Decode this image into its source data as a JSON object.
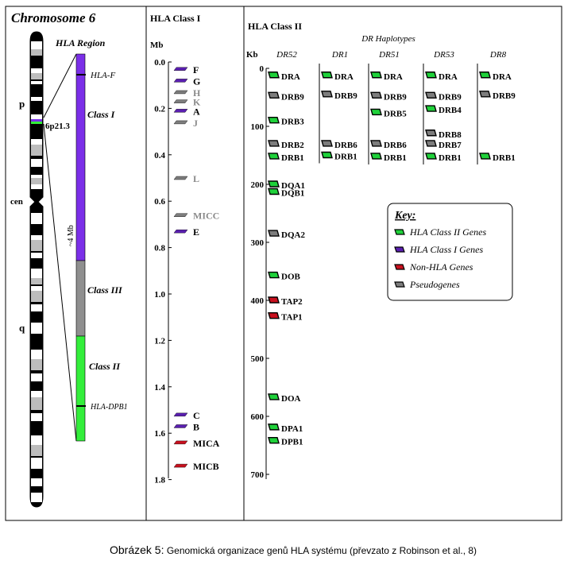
{
  "colors": {
    "class1": "#5a1fb0",
    "class2": "#1fd13a",
    "nonhla": "#c8101e",
    "pseudo": "#7d7d7d",
    "region_class1": "#7b2fe8",
    "region_class3": "#8f8f8f",
    "region_class2": "#33ee3b"
  },
  "chromosome": {
    "title": "Chromosome 6",
    "region_title": "HLA Region",
    "p_label": "p",
    "q_label": "q",
    "cen_label": "cen",
    "band_label": "6p21.3",
    "size_label": "~4 Mb",
    "class1_label": "Class I",
    "class3_label": "Class III",
    "class2_label": "Class II",
    "hlaf_label": "HLA-F",
    "dpb1_label": "HLA-DPB1"
  },
  "class1": {
    "title": "HLA Class I",
    "unit": "Mb",
    "ticks": [
      "0.0",
      "0.2",
      "0.4",
      "0.6",
      "0.8",
      "1.0",
      "1.2",
      "1.4",
      "1.6",
      "1.8"
    ],
    "genes": [
      {
        "name": "F",
        "pos": 0.03,
        "type": "class1"
      },
      {
        "name": "G",
        "pos": 0.08,
        "type": "class1"
      },
      {
        "name": "H",
        "pos": 0.13,
        "type": "pseudo"
      },
      {
        "name": "K",
        "pos": 0.17,
        "type": "pseudo"
      },
      {
        "name": "A",
        "pos": 0.21,
        "type": "class1"
      },
      {
        "name": "J",
        "pos": 0.26,
        "type": "pseudo"
      },
      {
        "name": "L",
        "pos": 0.5,
        "type": "pseudo"
      },
      {
        "name": "MICC",
        "pos": 0.66,
        "type": "pseudo"
      },
      {
        "name": "E",
        "pos": 0.73,
        "type": "class1"
      },
      {
        "name": "C",
        "pos": 1.52,
        "type": "class1"
      },
      {
        "name": "B",
        "pos": 1.57,
        "type": "class1"
      },
      {
        "name": "MICA",
        "pos": 1.64,
        "type": "nonhla"
      },
      {
        "name": "MICB",
        "pos": 1.74,
        "type": "nonhla"
      }
    ]
  },
  "class2": {
    "title": "HLA Class II",
    "unit": "Kb",
    "haplo_title": "DR Haplotypes",
    "ticks": [
      "0",
      "100",
      "200",
      "300",
      "400",
      "500",
      "600",
      "700"
    ],
    "haplotypes": [
      {
        "name": "DR52",
        "genes": [
          {
            "name": "DRA",
            "pos": 12,
            "type": "class2"
          },
          {
            "name": "DRB9",
            "pos": 47,
            "type": "pseudo"
          },
          {
            "name": "DRB3",
            "pos": 90,
            "type": "class2"
          },
          {
            "name": "DRB2",
            "pos": 130,
            "type": "pseudo"
          },
          {
            "name": "DRB1",
            "pos": 152,
            "type": "class2"
          },
          {
            "name": "DQA1",
            "pos": 200,
            "type": "class2"
          },
          {
            "name": "DQB1",
            "pos": 213,
            "type": "class2"
          },
          {
            "name": "DQA2",
            "pos": 285,
            "type": "pseudo"
          },
          {
            "name": "DOB",
            "pos": 357,
            "type": "class2"
          },
          {
            "name": "TAP2",
            "pos": 400,
            "type": "nonhla"
          },
          {
            "name": "TAP1",
            "pos": 427,
            "type": "nonhla"
          },
          {
            "name": "DOA",
            "pos": 567,
            "type": "class2"
          },
          {
            "name": "DPA1",
            "pos": 619,
            "type": "class2"
          },
          {
            "name": "DPB1",
            "pos": 642,
            "type": "class2"
          }
        ]
      },
      {
        "name": "DR1",
        "genes": [
          {
            "name": "DRA",
            "pos": 12,
            "type": "class2"
          },
          {
            "name": "DRB9",
            "pos": 45,
            "type": "pseudo"
          },
          {
            "name": "DRB6",
            "pos": 130,
            "type": "pseudo"
          },
          {
            "name": "DRB1",
            "pos": 150,
            "type": "class2"
          }
        ]
      },
      {
        "name": "DR51",
        "genes": [
          {
            "name": "DRA",
            "pos": 12,
            "type": "class2"
          },
          {
            "name": "DRB9",
            "pos": 47,
            "type": "pseudo"
          },
          {
            "name": "DRB5",
            "pos": 76,
            "type": "class2"
          },
          {
            "name": "DRB6",
            "pos": 130,
            "type": "pseudo"
          },
          {
            "name": "DRB1",
            "pos": 152,
            "type": "class2"
          }
        ]
      },
      {
        "name": "DR53",
        "genes": [
          {
            "name": "DRA",
            "pos": 12,
            "type": "class2"
          },
          {
            "name": "DRB9",
            "pos": 47,
            "type": "pseudo"
          },
          {
            "name": "DRB4",
            "pos": 70,
            "type": "class2"
          },
          {
            "name": "DRB8",
            "pos": 112,
            "type": "pseudo"
          },
          {
            "name": "DRB7",
            "pos": 130,
            "type": "pseudo"
          },
          {
            "name": "DRB1",
            "pos": 152,
            "type": "class2"
          }
        ]
      },
      {
        "name": "DR8",
        "genes": [
          {
            "name": "DRA",
            "pos": 12,
            "type": "class2"
          },
          {
            "name": "DRB9",
            "pos": 45,
            "type": "pseudo"
          },
          {
            "name": "DRB1",
            "pos": 152,
            "type": "class2"
          }
        ]
      }
    ]
  },
  "key": {
    "title": "Key:",
    "items": [
      {
        "label": "HLA Class II Genes",
        "type": "class2"
      },
      {
        "label": "HLA Class I Genes",
        "type": "class1"
      },
      {
        "label": "Non-HLA Genes",
        "type": "nonhla"
      },
      {
        "label": "Pseudogenes",
        "type": "pseudo"
      }
    ]
  },
  "caption": {
    "label": "Obrázek 5:",
    "text": "Genomická organizace genů HLA systému (převzato z Robinson et al., 8)"
  }
}
